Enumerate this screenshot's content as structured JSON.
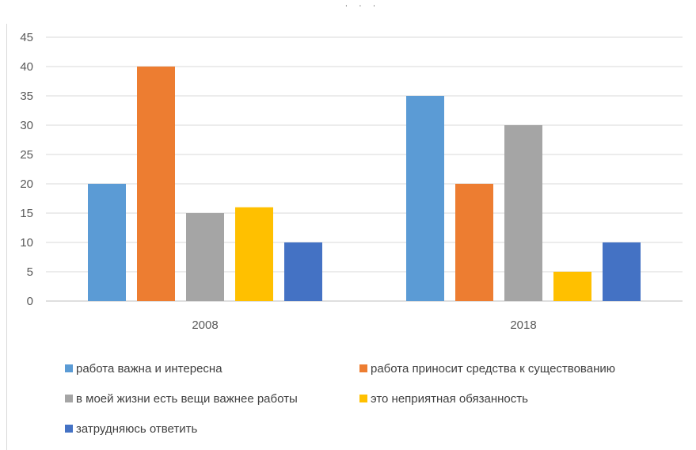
{
  "chart_data": {
    "type": "bar",
    "title": "",
    "xlabel": "",
    "ylabel": "",
    "categories": [
      "2008",
      "2018"
    ],
    "ylim": [
      0,
      45
    ],
    "yticks": [
      0,
      5,
      10,
      15,
      20,
      25,
      30,
      35,
      40,
      45
    ],
    "grid": true,
    "legend_position": "bottom",
    "series": [
      {
        "name": "работа важна и интересна",
        "values": [
          20,
          35
        ],
        "color": "#5B9BD5"
      },
      {
        "name": "работа приносит средства к существованию",
        "values": [
          40,
          20
        ],
        "color": "#ED7D31"
      },
      {
        "name": "в моей жизни есть вещи важнее работы",
        "values": [
          15,
          30
        ],
        "color": "#A5A5A5"
      },
      {
        "name": "это неприятная обязанность",
        "values": [
          16,
          5
        ],
        "color": "#FFC000"
      },
      {
        "name": "затрудняюсь ответить",
        "values": [
          10,
          10
        ],
        "color": "#4472C4"
      }
    ]
  },
  "top_marks": ". . ."
}
